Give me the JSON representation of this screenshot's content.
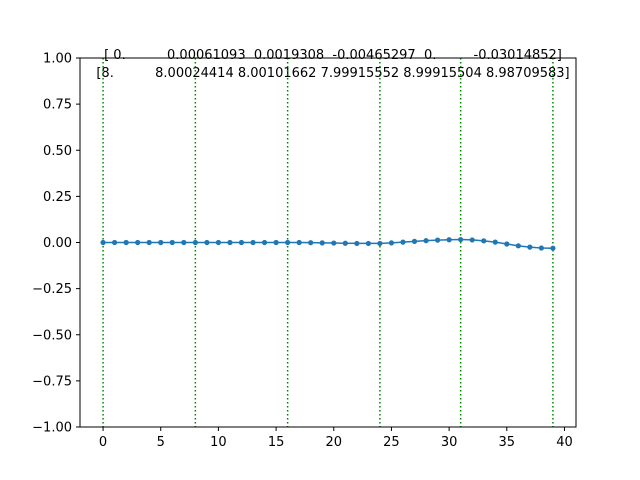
{
  "chart_data": {
    "type": "line",
    "title_lines": [
      "[ 0.          0.00061093  0.0019308  -0.00465297  0.         -0.03014852]",
      "[8.          8.00024414 8.00101662 7.99915552 8.99915504 8.98709583]"
    ],
    "xlabel": "",
    "ylabel": "",
    "xlim": [
      -2,
      41
    ],
    "ylim": [
      -1.0,
      1.0
    ],
    "x_ticks": [
      0,
      5,
      10,
      15,
      20,
      25,
      30,
      35,
      40
    ],
    "x_tick_labels": [
      "0",
      "5",
      "10",
      "15",
      "20",
      "25",
      "30",
      "35",
      "40"
    ],
    "y_ticks": [
      -1.0,
      -0.75,
      -0.5,
      -0.25,
      0.0,
      0.25,
      0.5,
      0.75,
      1.0
    ],
    "y_tick_labels": [
      "−1.00",
      "−0.75",
      "−0.50",
      "−0.25",
      "0.00",
      "0.25",
      "0.50",
      "0.75",
      "1.00"
    ],
    "grid": false,
    "series": [
      {
        "color": "#1f77b4",
        "marker": "circle",
        "x": [
          0,
          1,
          2,
          3,
          4,
          5,
          6,
          7,
          8,
          9,
          10,
          11,
          12,
          13,
          14,
          15,
          16,
          17,
          18,
          19,
          20,
          21,
          22,
          23,
          24,
          25,
          26,
          27,
          28,
          29,
          30,
          31,
          32,
          33,
          34,
          35,
          36,
          37,
          38,
          39
        ],
        "y": [
          0.0,
          0.0,
          0.0,
          0.0,
          0.0,
          0.0,
          0.0,
          0.0,
          0.0,
          0.0,
          0.0,
          0.0,
          0.0,
          0.0,
          0.0,
          0.0,
          0.0,
          0.0,
          -0.001,
          -0.002,
          -0.003,
          -0.004,
          -0.005,
          -0.005,
          -0.005,
          -0.002,
          0.002,
          0.006,
          0.01,
          0.013,
          0.015,
          0.016,
          0.014,
          0.009,
          0.002,
          -0.008,
          -0.018,
          -0.025,
          -0.03,
          -0.031
        ]
      }
    ],
    "vlines": {
      "x": [
        0,
        8,
        16,
        24,
        31,
        39
      ],
      "color": "#008000",
      "style": "dotted"
    }
  }
}
